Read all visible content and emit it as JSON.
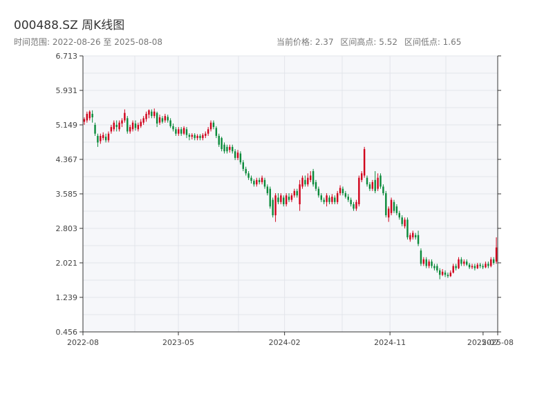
{
  "header": {
    "title": "000488.SZ 周K线图",
    "range_label": "时间范围: 2022-08-26 至 2025-08-08",
    "stats": [
      "当前价格: 2.37",
      "区间高点: 5.52",
      "区间低点: 1.65"
    ]
  },
  "colors": {
    "up": "#d0021b",
    "down": "#0a8a3a",
    "plot_bg": "#f6f7fa",
    "grid": "#e2e4ea",
    "axis": "#333333"
  },
  "chart_data": {
    "type": "candlestick",
    "title": "000488.SZ 周K线图",
    "y_ticks": [
      0.456,
      1.239,
      2.021,
      2.803,
      3.585,
      4.367,
      5.149,
      5.931,
      6.713
    ],
    "ylim": [
      0.456,
      6.713
    ],
    "x_ticks": [
      "2022-08",
      "2023-05",
      "2024-02",
      "2024-11",
      "2025-07",
      "2025-08"
    ],
    "x_tick_dates": [
      "2022-08-26",
      "2023-05-01",
      "2024-02-01",
      "2024-11-01",
      "2025-07-01",
      "2025-08-08"
    ],
    "date_start": "2022-08-26",
    "date_end": "2025-08-08",
    "grid": true,
    "current_price": 2.37,
    "range_high": 5.52,
    "range_low": 1.65,
    "candles": [
      {
        "o": 5.22,
        "c": 5.28,
        "h": 5.32,
        "l": 5.15
      },
      {
        "o": 5.25,
        "c": 5.4,
        "h": 5.45,
        "l": 5.2
      },
      {
        "o": 5.3,
        "c": 5.45,
        "h": 5.48,
        "l": 5.25
      },
      {
        "o": 5.4,
        "c": 5.32,
        "h": 5.48,
        "l": 5.2
      },
      {
        "o": 5.15,
        "c": 4.95,
        "h": 5.2,
        "l": 4.9
      },
      {
        "o": 4.9,
        "c": 4.75,
        "h": 4.95,
        "l": 4.65
      },
      {
        "o": 4.78,
        "c": 4.9,
        "h": 4.95,
        "l": 4.72
      },
      {
        "o": 4.85,
        "c": 4.92,
        "h": 4.98,
        "l": 4.8
      },
      {
        "o": 4.88,
        "c": 4.8,
        "h": 4.95,
        "l": 4.75
      },
      {
        "o": 4.8,
        "c": 4.95,
        "h": 5.0,
        "l": 4.75
      },
      {
        "o": 5.0,
        "c": 5.1,
        "h": 5.15,
        "l": 4.95
      },
      {
        "o": 5.05,
        "c": 5.2,
        "h": 5.25,
        "l": 5.0
      },
      {
        "o": 5.15,
        "c": 5.1,
        "h": 5.25,
        "l": 5.0
      },
      {
        "o": 5.05,
        "c": 5.2,
        "h": 5.25,
        "l": 5.0
      },
      {
        "o": 5.18,
        "c": 5.25,
        "h": 5.3,
        "l": 5.1
      },
      {
        "o": 5.25,
        "c": 5.42,
        "h": 5.5,
        "l": 5.2
      },
      {
        "o": 5.3,
        "c": 5.0,
        "h": 5.35,
        "l": 4.95
      },
      {
        "o": 5.0,
        "c": 5.1,
        "h": 5.15,
        "l": 4.95
      },
      {
        "o": 5.05,
        "c": 5.2,
        "h": 5.25,
        "l": 5.0
      },
      {
        "o": 5.18,
        "c": 5.08,
        "h": 5.25,
        "l": 5.02
      },
      {
        "o": 5.05,
        "c": 5.15,
        "h": 5.2,
        "l": 5.0
      },
      {
        "o": 5.12,
        "c": 5.22,
        "h": 5.28,
        "l": 5.08
      },
      {
        "o": 5.2,
        "c": 5.3,
        "h": 5.35,
        "l": 5.15
      },
      {
        "o": 5.28,
        "c": 5.4,
        "h": 5.45,
        "l": 5.22
      },
      {
        "o": 5.38,
        "c": 5.48,
        "h": 5.5,
        "l": 5.3
      },
      {
        "o": 5.45,
        "c": 5.35,
        "h": 5.5,
        "l": 5.3
      },
      {
        "o": 5.35,
        "c": 5.45,
        "h": 5.52,
        "l": 5.3
      },
      {
        "o": 5.42,
        "c": 5.18,
        "h": 5.45,
        "l": 5.1
      },
      {
        "o": 5.2,
        "c": 5.32,
        "h": 5.38,
        "l": 5.15
      },
      {
        "o": 5.3,
        "c": 5.22,
        "h": 5.35,
        "l": 5.18
      },
      {
        "o": 5.25,
        "c": 5.35,
        "h": 5.4,
        "l": 5.2
      },
      {
        "o": 5.33,
        "c": 5.25,
        "h": 5.38,
        "l": 5.2
      },
      {
        "o": 5.25,
        "c": 5.12,
        "h": 5.3,
        "l": 5.08
      },
      {
        "o": 5.12,
        "c": 5.05,
        "h": 5.18,
        "l": 5.0
      },
      {
        "o": 5.05,
        "c": 4.95,
        "h": 5.1,
        "l": 4.9
      },
      {
        "o": 4.95,
        "c": 5.05,
        "h": 5.1,
        "l": 4.9
      },
      {
        "o": 5.05,
        "c": 4.95,
        "h": 5.1,
        "l": 4.9
      },
      {
        "o": 4.95,
        "c": 5.08,
        "h": 5.12,
        "l": 4.92
      },
      {
        "o": 5.05,
        "c": 4.92,
        "h": 5.1,
        "l": 4.85
      },
      {
        "o": 4.92,
        "c": 4.88,
        "h": 4.96,
        "l": 4.8
      },
      {
        "o": 4.88,
        "c": 4.92,
        "h": 4.96,
        "l": 4.82
      },
      {
        "o": 4.92,
        "c": 4.85,
        "h": 4.96,
        "l": 4.8
      },
      {
        "o": 4.85,
        "c": 4.9,
        "h": 4.94,
        "l": 4.8
      },
      {
        "o": 4.9,
        "c": 4.85,
        "h": 4.94,
        "l": 4.8
      },
      {
        "o": 4.85,
        "c": 4.92,
        "h": 4.96,
        "l": 4.8
      },
      {
        "o": 4.9,
        "c": 4.95,
        "h": 5.0,
        "l": 4.85
      },
      {
        "o": 4.95,
        "c": 5.05,
        "h": 5.1,
        "l": 4.9
      },
      {
        "o": 5.05,
        "c": 5.2,
        "h": 5.25,
        "l": 5.0
      },
      {
        "o": 5.2,
        "c": 5.1,
        "h": 5.25,
        "l": 5.05
      },
      {
        "o": 5.08,
        "c": 4.9,
        "h": 5.12,
        "l": 4.85
      },
      {
        "o": 4.9,
        "c": 4.7,
        "h": 4.95,
        "l": 4.65
      },
      {
        "o": 4.85,
        "c": 4.6,
        "h": 4.88,
        "l": 4.55
      },
      {
        "o": 4.7,
        "c": 4.55,
        "h": 4.75,
        "l": 4.5
      },
      {
        "o": 4.65,
        "c": 4.55,
        "h": 4.7,
        "l": 4.5
      },
      {
        "o": 4.58,
        "c": 4.65,
        "h": 4.7,
        "l": 4.52
      },
      {
        "o": 4.65,
        "c": 4.55,
        "h": 4.7,
        "l": 4.5
      },
      {
        "o": 4.55,
        "c": 4.4,
        "h": 4.6,
        "l": 4.35
      },
      {
        "o": 4.4,
        "c": 4.52,
        "h": 4.58,
        "l": 4.35
      },
      {
        "o": 4.5,
        "c": 4.3,
        "h": 4.55,
        "l": 4.25
      },
      {
        "o": 4.3,
        "c": 4.15,
        "h": 4.35,
        "l": 4.1
      },
      {
        "o": 4.15,
        "c": 4.05,
        "h": 4.2,
        "l": 4.0
      },
      {
        "o": 4.05,
        "c": 3.95,
        "h": 4.1,
        "l": 3.9
      },
      {
        "o": 3.95,
        "c": 3.88,
        "h": 4.0,
        "l": 3.82
      },
      {
        "o": 3.88,
        "c": 3.8,
        "h": 3.92,
        "l": 3.75
      },
      {
        "o": 3.8,
        "c": 3.9,
        "h": 3.95,
        "l": 3.75
      },
      {
        "o": 3.9,
        "c": 3.85,
        "h": 3.95,
        "l": 3.8
      },
      {
        "o": 3.85,
        "c": 3.95,
        "h": 4.0,
        "l": 3.8
      },
      {
        "o": 3.9,
        "c": 3.75,
        "h": 3.95,
        "l": 3.7
      },
      {
        "o": 3.75,
        "c": 3.6,
        "h": 3.8,
        "l": 3.55
      },
      {
        "o": 3.7,
        "c": 3.3,
        "h": 3.75,
        "l": 3.25
      },
      {
        "o": 3.45,
        "c": 3.1,
        "h": 3.5,
        "l": 3.05
      },
      {
        "o": 3.1,
        "c": 3.55,
        "h": 3.6,
        "l": 2.95
      },
      {
        "o": 3.5,
        "c": 3.4,
        "h": 3.6,
        "l": 3.35
      },
      {
        "o": 3.4,
        "c": 3.55,
        "h": 3.6,
        "l": 3.35
      },
      {
        "o": 3.5,
        "c": 3.35,
        "h": 3.55,
        "l": 3.3
      },
      {
        "o": 3.35,
        "c": 3.55,
        "h": 3.6,
        "l": 3.3
      },
      {
        "o": 3.52,
        "c": 3.45,
        "h": 3.6,
        "l": 3.4
      },
      {
        "o": 3.45,
        "c": 3.55,
        "h": 3.6,
        "l": 3.4
      },
      {
        "o": 3.55,
        "c": 3.65,
        "h": 3.7,
        "l": 3.5
      },
      {
        "o": 3.65,
        "c": 3.55,
        "h": 3.7,
        "l": 3.5
      },
      {
        "o": 3.35,
        "c": 3.8,
        "h": 3.9,
        "l": 3.2
      },
      {
        "o": 3.75,
        "c": 3.95,
        "h": 4.0,
        "l": 3.7
      },
      {
        "o": 3.9,
        "c": 3.8,
        "h": 4.0,
        "l": 3.75
      },
      {
        "o": 3.8,
        "c": 3.95,
        "h": 4.05,
        "l": 3.75
      },
      {
        "o": 3.9,
        "c": 4.0,
        "h": 4.1,
        "l": 3.85
      },
      {
        "o": 4.1,
        "c": 3.8,
        "h": 4.15,
        "l": 3.75
      },
      {
        "o": 3.85,
        "c": 3.7,
        "h": 3.9,
        "l": 3.65
      },
      {
        "o": 3.7,
        "c": 3.55,
        "h": 3.75,
        "l": 3.5
      },
      {
        "o": 3.55,
        "c": 3.45,
        "h": 3.6,
        "l": 3.4
      },
      {
        "o": 3.45,
        "c": 3.4,
        "h": 3.5,
        "l": 3.35
      },
      {
        "o": 3.4,
        "c": 3.55,
        "h": 3.6,
        "l": 3.3
      },
      {
        "o": 3.5,
        "c": 3.4,
        "h": 3.55,
        "l": 3.35
      },
      {
        "o": 3.4,
        "c": 3.52,
        "h": 3.58,
        "l": 3.35
      },
      {
        "o": 3.5,
        "c": 3.4,
        "h": 3.55,
        "l": 3.35
      },
      {
        "o": 3.4,
        "c": 3.6,
        "h": 3.65,
        "l": 3.35
      },
      {
        "o": 3.6,
        "c": 3.72,
        "h": 3.78,
        "l": 3.55
      },
      {
        "o": 3.7,
        "c": 3.6,
        "h": 3.75,
        "l": 3.55
      },
      {
        "o": 3.6,
        "c": 3.52,
        "h": 3.65,
        "l": 3.48
      },
      {
        "o": 3.52,
        "c": 3.45,
        "h": 3.58,
        "l": 3.4
      },
      {
        "o": 3.45,
        "c": 3.35,
        "h": 3.5,
        "l": 3.3
      },
      {
        "o": 3.35,
        "c": 3.25,
        "h": 3.4,
        "l": 3.2
      },
      {
        "o": 3.25,
        "c": 3.4,
        "h": 3.45,
        "l": 3.2
      },
      {
        "o": 3.35,
        "c": 3.95,
        "h": 4.0,
        "l": 3.3
      },
      {
        "o": 3.9,
        "c": 4.05,
        "h": 4.1,
        "l": 3.85
      },
      {
        "o": 4.0,
        "c": 4.6,
        "h": 4.65,
        "l": 3.95
      },
      {
        "o": 3.95,
        "c": 3.8,
        "h": 4.0,
        "l": 3.75
      },
      {
        "o": 3.8,
        "c": 3.7,
        "h": 3.85,
        "l": 3.65
      },
      {
        "o": 3.7,
        "c": 3.85,
        "h": 3.9,
        "l": 3.65
      },
      {
        "o": 3.9,
        "c": 3.65,
        "h": 4.1,
        "l": 3.6
      },
      {
        "o": 3.7,
        "c": 3.95,
        "h": 4.05,
        "l": 3.65
      },
      {
        "o": 4.0,
        "c": 3.75,
        "h": 4.05,
        "l": 3.7
      },
      {
        "o": 3.75,
        "c": 3.6,
        "h": 3.8,
        "l": 3.55
      },
      {
        "o": 3.6,
        "c": 3.1,
        "h": 3.65,
        "l": 3.05
      },
      {
        "o": 3.05,
        "c": 3.25,
        "h": 3.3,
        "l": 2.95
      },
      {
        "o": 3.15,
        "c": 3.45,
        "h": 3.5,
        "l": 3.1
      },
      {
        "o": 3.4,
        "c": 3.2,
        "h": 3.45,
        "l": 3.15
      },
      {
        "o": 3.3,
        "c": 3.15,
        "h": 3.35,
        "l": 3.1
      },
      {
        "o": 3.15,
        "c": 3.05,
        "h": 3.2,
        "l": 3.0
      },
      {
        "o": 3.05,
        "c": 2.9,
        "h": 3.1,
        "l": 2.85
      },
      {
        "o": 2.85,
        "c": 3.0,
        "h": 3.05,
        "l": 2.8
      },
      {
        "o": 3.0,
        "c": 2.6,
        "h": 3.05,
        "l": 2.55
      },
      {
        "o": 2.55,
        "c": 2.65,
        "h": 2.7,
        "l": 2.5
      },
      {
        "o": 2.6,
        "c": 2.7,
        "h": 2.75,
        "l": 2.55
      },
      {
        "o": 2.65,
        "c": 2.6,
        "h": 2.7,
        "l": 2.55
      },
      {
        "o": 2.65,
        "c": 2.45,
        "h": 2.75,
        "l": 2.4
      },
      {
        "o": 2.3,
        "c": 2.0,
        "h": 2.35,
        "l": 1.95
      },
      {
        "o": 2.0,
        "c": 2.1,
        "h": 2.15,
        "l": 1.95
      },
      {
        "o": 2.1,
        "c": 1.95,
        "h": 2.15,
        "l": 1.9
      },
      {
        "o": 1.95,
        "c": 2.05,
        "h": 2.1,
        "l": 1.9
      },
      {
        "o": 2.05,
        "c": 1.95,
        "h": 2.1,
        "l": 1.9
      },
      {
        "o": 1.95,
        "c": 1.9,
        "h": 2.0,
        "l": 1.85
      },
      {
        "o": 1.95,
        "c": 1.85,
        "h": 2.0,
        "l": 1.8
      },
      {
        "o": 1.85,
        "c": 1.75,
        "h": 1.9,
        "l": 1.65
      },
      {
        "o": 1.75,
        "c": 1.82,
        "h": 1.88,
        "l": 1.72
      },
      {
        "o": 1.8,
        "c": 1.75,
        "h": 1.85,
        "l": 1.7
      },
      {
        "o": 1.75,
        "c": 1.72,
        "h": 1.8,
        "l": 1.68
      },
      {
        "o": 1.72,
        "c": 1.8,
        "h": 1.85,
        "l": 1.7
      },
      {
        "o": 1.8,
        "c": 1.95,
        "h": 2.0,
        "l": 1.78
      },
      {
        "o": 1.95,
        "c": 1.9,
        "h": 2.0,
        "l": 1.85
      },
      {
        "o": 1.9,
        "c": 2.1,
        "h": 2.15,
        "l": 1.88
      },
      {
        "o": 2.1,
        "c": 2.0,
        "h": 2.15,
        "l": 1.95
      },
      {
        "o": 2.0,
        "c": 2.05,
        "h": 2.1,
        "l": 1.95
      },
      {
        "o": 2.05,
        "c": 1.98,
        "h": 2.1,
        "l": 1.95
      },
      {
        "o": 1.98,
        "c": 1.92,
        "h": 2.02,
        "l": 1.88
      },
      {
        "o": 1.92,
        "c": 1.95,
        "h": 2.0,
        "l": 1.88
      },
      {
        "o": 1.95,
        "c": 1.9,
        "h": 2.0,
        "l": 1.85
      },
      {
        "o": 1.9,
        "c": 1.98,
        "h": 2.02,
        "l": 1.88
      },
      {
        "o": 1.98,
        "c": 1.95,
        "h": 2.02,
        "l": 1.9
      },
      {
        "o": 1.95,
        "c": 1.92,
        "h": 2.0,
        "l": 1.88
      },
      {
        "o": 1.92,
        "c": 2.0,
        "h": 2.05,
        "l": 1.9
      },
      {
        "o": 2.0,
        "c": 1.95,
        "h": 2.05,
        "l": 1.9
      },
      {
        "o": 1.95,
        "c": 2.1,
        "h": 2.15,
        "l": 1.92
      },
      {
        "o": 2.1,
        "c": 2.02,
        "h": 2.15,
        "l": 1.98
      },
      {
        "o": 2.05,
        "c": 2.37,
        "h": 2.6,
        "l": 2.0
      }
    ]
  }
}
